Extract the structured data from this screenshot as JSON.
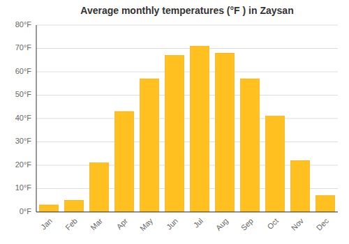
{
  "chart_data": {
    "type": "bar",
    "title": "Average monthly temperatures (°F ) in Zaysan",
    "categories": [
      "Jan",
      "Feb",
      "Mar",
      "Apr",
      "May",
      "Jun",
      "Jul",
      "Aug",
      "Sep",
      "Oct",
      "Nov",
      "Dec"
    ],
    "values": [
      3,
      5,
      21,
      43,
      57,
      67,
      71,
      68,
      57,
      41,
      22,
      7
    ],
    "color": "#FFC020",
    "ylim": [
      0,
      80
    ],
    "yticks": [
      {
        "value": 0,
        "label": "0°F"
      },
      {
        "value": 10,
        "label": "10°F"
      },
      {
        "value": 20,
        "label": "20°F"
      },
      {
        "value": 30,
        "label": "30°F"
      },
      {
        "value": 40,
        "label": "40°F"
      },
      {
        "value": 50,
        "label": "50°F"
      },
      {
        "value": 60,
        "label": "60°F"
      },
      {
        "value": 70,
        "label": "70°F"
      },
      {
        "value": 80,
        "label": "80°F"
      }
    ],
    "grid": true
  }
}
